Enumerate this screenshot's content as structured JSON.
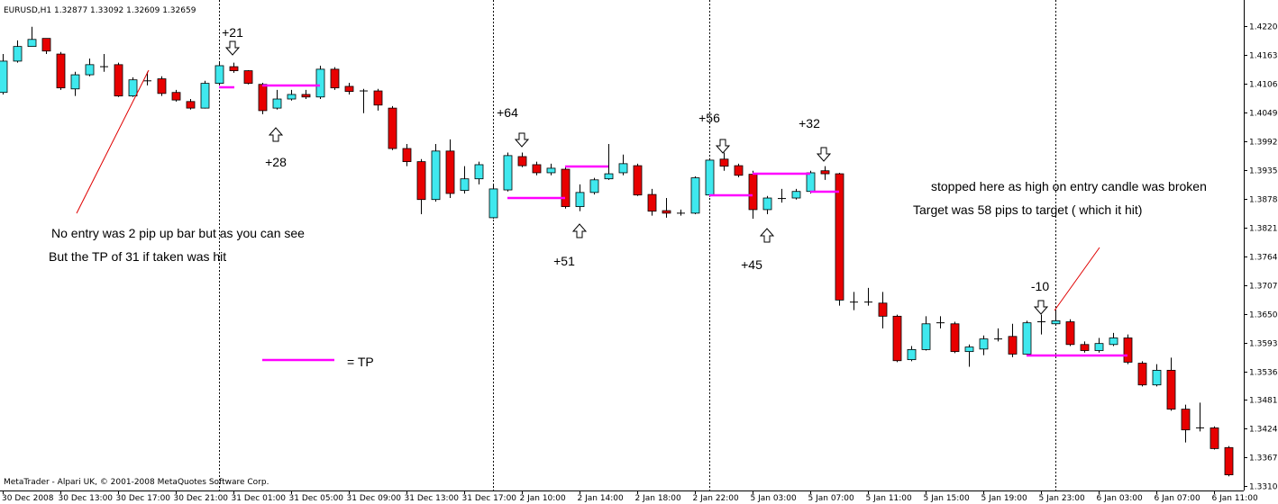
{
  "chart_data": {
    "type": "candlestick",
    "title": "EURUSD,H1  1.32877 1.33092 1.32609 1.32659",
    "footer": "MetaTrader - Alpari UK, © 2001-2008 MetaQuotes Software Corp.",
    "up_color": "#3fe8ee",
    "down_color": "#e80000",
    "ylim": [
      1.3301,
      1.4272
    ],
    "yticks": [
      1.42205,
      1.41635,
      1.41065,
      1.40495,
      1.39925,
      1.39355,
      1.38785,
      1.38215,
      1.37645,
      1.37075,
      1.36505,
      1.35935,
      1.35365,
      {
        "value": 1.3481,
        "label": "1.34810"
      },
      {
        "value": 1.3424,
        "label": "1.34240"
      },
      {
        "value": 1.3367,
        "label": "1.33670"
      },
      {
        "value": 1.331,
        "label": "1.33100"
      }
    ],
    "categories": [
      "30 Dec 2008",
      null,
      null,
      null,
      "30 Dec 13:00",
      null,
      null,
      null,
      "30 Dec 17:00",
      null,
      null,
      null,
      "30 Dec 21:00",
      null,
      null,
      null,
      "31 Dec 01:00",
      null,
      null,
      null,
      "31 Dec 05:00",
      null,
      null,
      null,
      "31 Dec 09:00",
      null,
      null,
      null,
      "31 Dec 13:00",
      null,
      null,
      null,
      "31 Dec 17:00",
      null,
      null,
      null,
      "2 Jan 10:00",
      null,
      null,
      null,
      "2 Jan 14:00",
      null,
      null,
      null,
      "2 Jan 18:00",
      null,
      null,
      null,
      "2 Jan 22:00",
      null,
      null,
      null,
      "5 Jan 03:00",
      null,
      null,
      null,
      "5 Jan 07:00",
      null,
      null,
      null,
      "5 Jan 11:00",
      null,
      null,
      null,
      "5 Jan 15:00",
      null,
      null,
      null,
      "5 Jan 19:00",
      null,
      null,
      null,
      "5 Jan 23:00",
      null,
      null,
      null,
      "6 Jan 03:00",
      null,
      null,
      null,
      "6 Jan 07:00",
      null,
      null,
      null,
      "6 Jan 11:00",
      null
    ],
    "open": [
      1.4089,
      1.4151,
      1.418,
      1.4196,
      1.4165,
      1.4096,
      1.4124,
      1.414,
      1.4144,
      1.4082,
      1.4112,
      1.4116,
      1.4089,
      1.4071,
      1.4058,
      1.4107,
      1.414,
      1.4132,
      1.4105,
      1.4058,
      1.4076,
      1.4085,
      1.408,
      1.4135,
      1.4101,
      1.4092,
      1.4092,
      1.4058,
      1.3978,
      1.3952,
      1.3877,
      1.3973,
      1.3895,
      1.3918,
      1.3841,
      1.3896,
      1.3962,
      1.3946,
      1.393,
      1.3937,
      1.3863,
      1.3891,
      1.3918,
      1.393,
      1.3944,
      1.3887,
      1.3855,
      1.385,
      1.385,
      1.3886,
      1.3957,
      1.3944,
      1.3927,
      1.3857,
      1.3879,
      1.388,
      1.3893,
      1.3934,
      1.3928,
      1.3674,
      1.3674,
      1.3672,
      1.3646,
      1.356,
      1.358,
      1.3633,
      1.3631,
      1.3576,
      1.3581,
      1.3601,
      1.3606,
      1.3571,
      1.3635,
      1.3631,
      1.3635,
      1.359,
      1.3578,
      1.359,
      1.3603,
      1.3553,
      1.351,
      1.3539,
      1.3462,
      1.3425,
      1.3425,
      1.3386
    ],
    "high": [
      1.4165,
      1.4192,
      1.4219,
      1.4196,
      1.4169,
      1.413,
      1.4156,
      1.4165,
      1.4148,
      1.4119,
      1.413,
      1.4121,
      1.4094,
      1.4076,
      1.4112,
      1.4148,
      1.4148,
      1.4133,
      1.4108,
      1.4094,
      1.4094,
      1.4094,
      1.4142,
      1.4139,
      1.4108,
      1.4096,
      1.4096,
      1.4062,
      1.3987,
      1.3957,
      1.3987,
      1.3996,
      1.3943,
      1.3952,
      1.3907,
      1.397,
      1.397,
      1.3952,
      1.3948,
      1.3943,
      1.3907,
      1.392,
      1.3987,
      1.3966,
      1.3948,
      1.3898,
      1.388,
      1.3857,
      1.3923,
      1.3959,
      1.397,
      1.3948,
      1.3934,
      1.3884,
      1.3898,
      1.3898,
      1.3934,
      1.3943,
      1.393,
      1.3694,
      1.3702,
      1.3694,
      1.3649,
      1.3587,
      1.3646,
      1.3646,
      1.3635,
      1.359,
      1.3608,
      1.3622,
      1.3631,
      1.3637,
      1.3649,
      1.3658,
      1.364,
      1.3596,
      1.3603,
      1.3613,
      1.361,
      1.3557,
      1.3551,
      1.3564,
      1.3471,
      1.3475,
      1.3428,
      1.3389
    ],
    "low": [
      1.4085,
      1.4148,
      1.418,
      1.4165,
      1.4094,
      1.4082,
      1.4121,
      1.413,
      1.408,
      1.408,
      1.4103,
      1.4082,
      1.4071,
      1.4055,
      1.4057,
      1.4103,
      1.4128,
      1.4105,
      1.4046,
      1.4055,
      1.4073,
      1.4076,
      1.4076,
      1.4094,
      1.4085,
      1.4048,
      1.4053,
      1.3975,
      1.3943,
      1.3848,
      1.3873,
      1.388,
      1.3889,
      1.3907,
      1.3839,
      1.3893,
      1.3941,
      1.3925,
      1.3925,
      1.3859,
      1.3854,
      1.3887,
      1.3916,
      1.3925,
      1.3884,
      1.3845,
      1.3841,
      1.3845,
      1.3848,
      1.3882,
      1.3934,
      1.3921,
      1.3839,
      1.3848,
      1.3871,
      1.3877,
      1.3889,
      1.3916,
      1.3667,
      1.3658,
      1.3667,
      1.3622,
      1.3555,
      1.3557,
      1.3578,
      1.3622,
      1.3573,
      1.3546,
      1.3569,
      1.3596,
      1.3565,
      1.3567,
      1.361,
      1.3628,
      1.3587,
      1.3574,
      1.3574,
      1.3587,
      1.3551,
      1.3507,
      1.3507,
      1.3459,
      1.3396,
      1.3418,
      1.3382,
      1.3329
    ],
    "close": [
      1.4151,
      1.418,
      1.4194,
      1.4171,
      1.4098,
      1.4124,
      1.4144,
      1.414,
      1.4082,
      1.4114,
      1.4112,
      1.4087,
      1.4074,
      1.4058,
      1.4107,
      1.4142,
      1.4132,
      1.4107,
      1.4053,
      1.4076,
      1.4085,
      1.408,
      1.4135,
      1.4098,
      1.4091,
      1.4092,
      1.4064,
      1.3978,
      1.3952,
      1.3877,
      1.3973,
      1.3889,
      1.3918,
      1.3946,
      1.3898,
      1.3964,
      1.3944,
      1.393,
      1.3939,
      1.3863,
      1.3891,
      1.3916,
      1.3928,
      1.3948,
      1.3886,
      1.3854,
      1.385,
      1.385,
      1.392,
      1.3955,
      1.3943,
      1.3925,
      1.3857,
      1.388,
      1.3879,
      1.3893,
      1.393,
      1.3928,
      1.3678,
      1.3674,
      1.3674,
      1.3646,
      1.3558,
      1.358,
      1.3631,
      1.3633,
      1.3576,
      1.3585,
      1.3601,
      1.3601,
      1.3571,
      1.3633,
      1.3635,
      1.3637,
      1.359,
      1.3578,
      1.3592,
      1.3603,
      1.3555,
      1.351,
      1.3539,
      1.3462,
      1.3421,
      1.3425,
      1.3384,
      1.3332
    ],
    "annotations": [
      "+21",
      "+28",
      "+64",
      "+51",
      "+56",
      "+45",
      "+32",
      "-10",
      "No entry was 2 pip up bar but as you can see",
      "But the TP of 31 if taken was hit",
      "= TP",
      "stopped here as high on entry candle was broken",
      "Target was 58 pips to target ( which it hit)"
    ]
  }
}
